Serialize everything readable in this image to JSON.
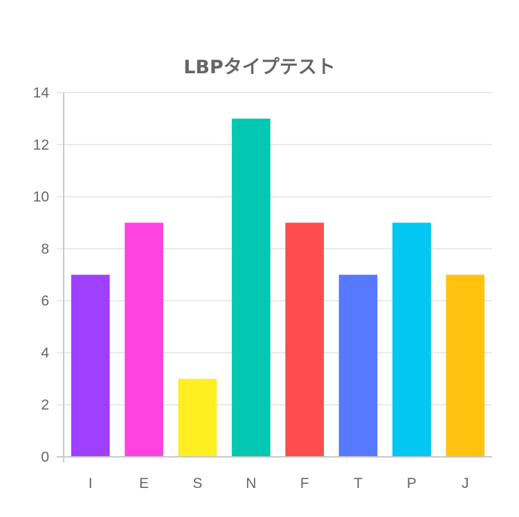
{
  "chart_data": {
    "type": "bar",
    "title": "LBPタイプテスト",
    "categories": [
      "I",
      "E",
      "S",
      "N",
      "F",
      "T",
      "P",
      "J"
    ],
    "values": [
      7,
      9,
      3,
      13,
      9,
      7,
      9,
      7
    ],
    "colors": [
      "#9f40ff",
      "#ff43e0",
      "#ffee22",
      "#00c8b1",
      "#ff4c4c",
      "#5878ff",
      "#00c8f2",
      "#ffc20e"
    ],
    "yticks": [
      "0",
      "2",
      "4",
      "6",
      "8",
      "10",
      "12",
      "14"
    ],
    "ylim": [
      0,
      14
    ],
    "grid": true,
    "legend": "none"
  }
}
